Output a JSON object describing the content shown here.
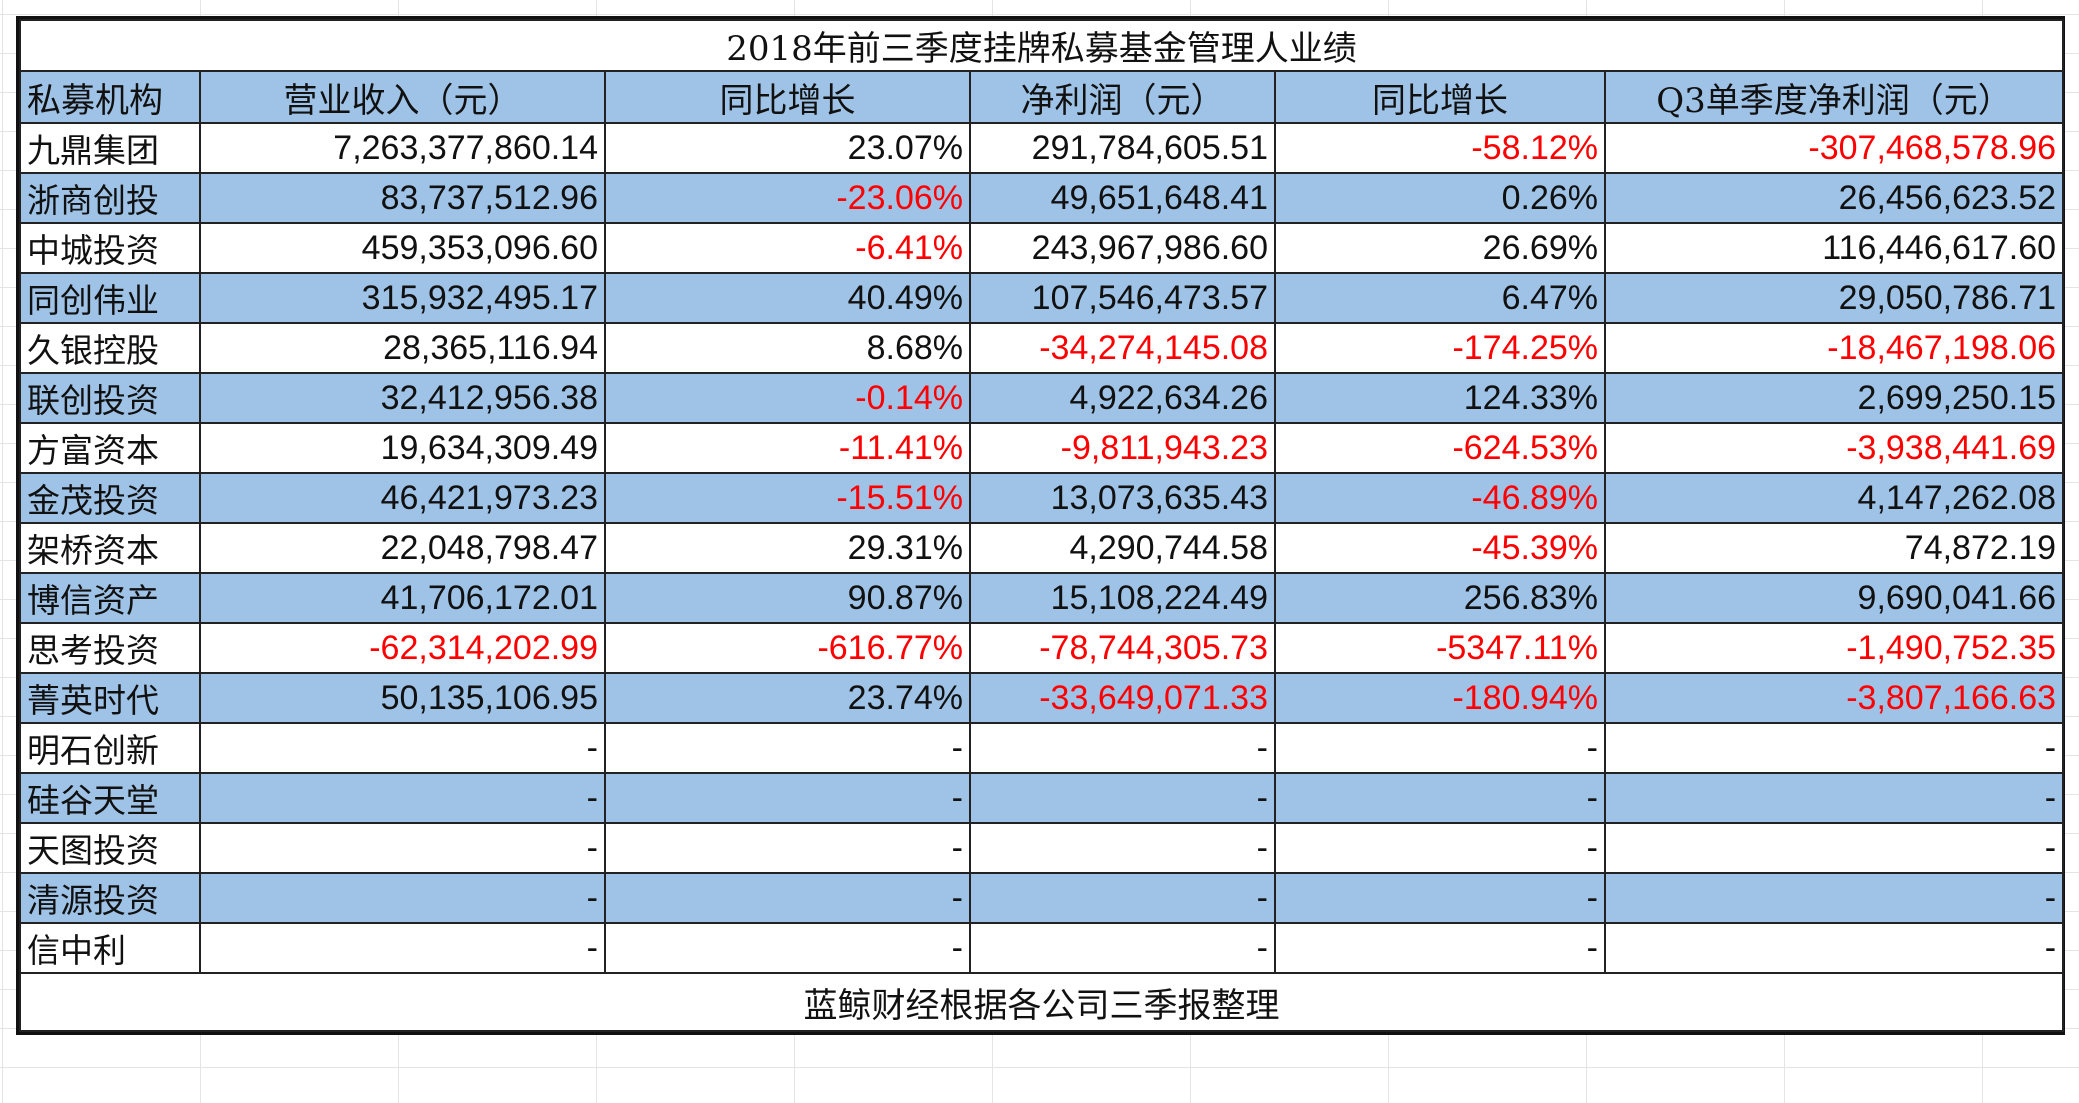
{
  "table": {
    "title": "2018年前三季度挂牌私募基金管理人业绩",
    "columns": [
      "私募机构",
      "营业收入（元）",
      "同比增长",
      "净利润（元）",
      "同比增长",
      "Q3单季度净利润（元）"
    ],
    "rows": [
      {
        "org": "九鼎集团",
        "revenue": "7,263,377,860.14",
        "revenue_yoy": "23.07%",
        "net_profit": "291,784,605.51",
        "profit_yoy": "-58.12%",
        "q3_profit": "-307,468,578.96"
      },
      {
        "org": "浙商创投",
        "revenue": "83,737,512.96",
        "revenue_yoy": "-23.06%",
        "net_profit": "49,651,648.41",
        "profit_yoy": "0.26%",
        "q3_profit": "26,456,623.52"
      },
      {
        "org": "中城投资",
        "revenue": "459,353,096.60",
        "revenue_yoy": "-6.41%",
        "net_profit": "243,967,986.60",
        "profit_yoy": "26.69%",
        "q3_profit": "116,446,617.60"
      },
      {
        "org": "同创伟业",
        "revenue": "315,932,495.17",
        "revenue_yoy": "40.49%",
        "net_profit": "107,546,473.57",
        "profit_yoy": "6.47%",
        "q3_profit": "29,050,786.71"
      },
      {
        "org": "久银控股",
        "revenue": "28,365,116.94",
        "revenue_yoy": "8.68%",
        "net_profit": "-34,274,145.08",
        "profit_yoy": "-174.25%",
        "q3_profit": "-18,467,198.06"
      },
      {
        "org": "联创投资",
        "revenue": "32,412,956.38",
        "revenue_yoy": "-0.14%",
        "net_profit": "4,922,634.26",
        "profit_yoy": "124.33%",
        "q3_profit": "2,699,250.15"
      },
      {
        "org": "方富资本",
        "revenue": "19,634,309.49",
        "revenue_yoy": "-11.41%",
        "net_profit": "-9,811,943.23",
        "profit_yoy": "-624.53%",
        "q3_profit": "-3,938,441.69"
      },
      {
        "org": "金茂投资",
        "revenue": "46,421,973.23",
        "revenue_yoy": "-15.51%",
        "net_profit": "13,073,635.43",
        "profit_yoy": "-46.89%",
        "q3_profit": "4,147,262.08"
      },
      {
        "org": "架桥资本",
        "revenue": "22,048,798.47",
        "revenue_yoy": "29.31%",
        "net_profit": "4,290,744.58",
        "profit_yoy": "-45.39%",
        "q3_profit": "74,872.19"
      },
      {
        "org": "博信资产",
        "revenue": "41,706,172.01",
        "revenue_yoy": "90.87%",
        "net_profit": "15,108,224.49",
        "profit_yoy": "256.83%",
        "q3_profit": "9,690,041.66"
      },
      {
        "org": "思考投资",
        "revenue": "-62,314,202.99",
        "revenue_yoy": "-616.77%",
        "net_profit": "-78,744,305.73",
        "profit_yoy": "-5347.11%",
        "q3_profit": "-1,490,752.35"
      },
      {
        "org": "菁英时代",
        "revenue": "50,135,106.95",
        "revenue_yoy": "23.74%",
        "net_profit": "-33,649,071.33",
        "profit_yoy": "-180.94%",
        "q3_profit": "-3,807,166.63"
      },
      {
        "org": "明石创新",
        "revenue": "-",
        "revenue_yoy": "-",
        "net_profit": "-",
        "profit_yoy": "-",
        "q3_profit": "-"
      },
      {
        "org": "硅谷天堂",
        "revenue": "-",
        "revenue_yoy": "-",
        "net_profit": "-",
        "profit_yoy": "-",
        "q3_profit": "-"
      },
      {
        "org": "天图投资",
        "revenue": "-",
        "revenue_yoy": "-",
        "net_profit": "-",
        "profit_yoy": "-",
        "q3_profit": "-"
      },
      {
        "org": "清源投资",
        "revenue": "-",
        "revenue_yoy": "-",
        "net_profit": "-",
        "profit_yoy": "-",
        "q3_profit": "-"
      },
      {
        "org": "信中利",
        "revenue": "-",
        "revenue_yoy": "-",
        "net_profit": "-",
        "profit_yoy": "-",
        "q3_profit": "-"
      }
    ],
    "footer": "蓝鲸财经根据各公司三季报整理"
  },
  "colors": {
    "band_blue": "#9fc3e7",
    "negative_red": "#ff0000",
    "text": "#111111",
    "border": "#222222"
  }
}
